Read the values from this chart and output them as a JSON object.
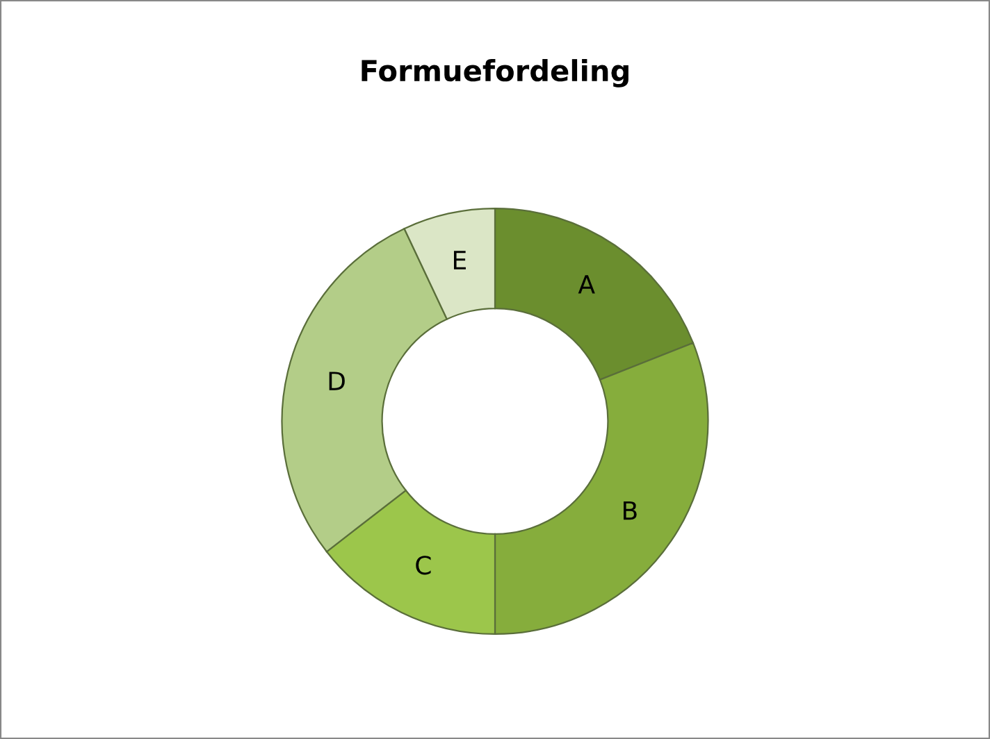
{
  "chart_data": {
    "type": "donut",
    "title": "Formuefordeling",
    "categories": [
      "A",
      "B",
      "C",
      "D",
      "E"
    ],
    "values": [
      19,
      31,
      14.5,
      28.5,
      7
    ],
    "colors": [
      "#6b8e2e",
      "#86ad3c",
      "#9cc64b",
      "#b3cd88",
      "#dbe6c6"
    ],
    "legend": false
  }
}
